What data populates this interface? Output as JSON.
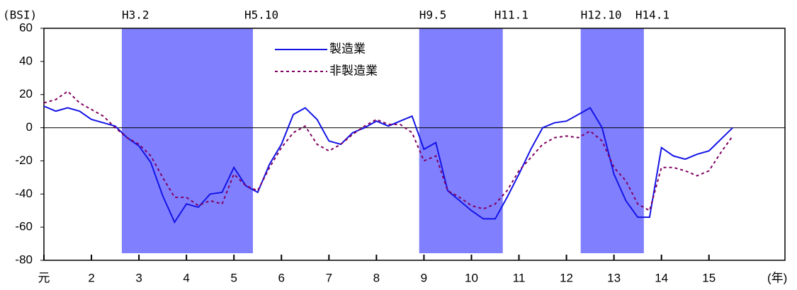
{
  "chart_data": {
    "type": "line",
    "y_label": "(BSI)",
    "x_label": "(年)",
    "x": [
      1,
      1.25,
      1.5,
      1.75,
      2,
      2.25,
      2.5,
      2.75,
      3,
      3.25,
      3.5,
      3.75,
      4,
      4.25,
      4.5,
      4.75,
      5,
      5.25,
      5.5,
      5.75,
      6,
      6.25,
      6.5,
      6.75,
      7,
      7.25,
      7.5,
      7.75,
      8,
      8.25,
      8.5,
      8.75,
      9,
      9.25,
      9.5,
      9.75,
      10,
      10.25,
      10.5,
      10.75,
      11,
      11.25,
      11.5,
      11.75,
      12,
      12.25,
      12.5,
      12.75,
      13,
      13.25,
      13.5,
      13.75,
      14,
      14.25,
      14.5,
      14.75,
      15,
      15.25,
      15.5
    ],
    "series": [
      {
        "name": "製造業",
        "color": "#1414e6",
        "dash": "solid",
        "values": [
          13,
          10,
          12,
          10,
          5,
          3,
          1,
          -6,
          -11,
          -21,
          -41,
          -57,
          -46,
          -48,
          -40,
          -39,
          -24,
          -35,
          -39,
          -22,
          -10,
          8,
          12,
          5,
          -8,
          -10,
          -3,
          0,
          4,
          1,
          4,
          7,
          -13,
          -9,
          -38,
          -44,
          -50,
          -55,
          -55,
          -42,
          -28,
          -13,
          0,
          3,
          4,
          8,
          12,
          0,
          -28,
          -44,
          -54,
          -54,
          -12,
          -17,
          -19,
          -16,
          -14,
          -7,
          0
        ]
      },
      {
        "name": "非製造業",
        "color": "#800060",
        "dash": "dotted",
        "values": [
          15,
          17,
          22,
          15,
          11,
          7,
          0,
          -6,
          -10,
          -17,
          -30,
          -42,
          -42,
          -47,
          -44,
          -46,
          -28,
          -35,
          -38,
          -24,
          -12,
          -3,
          1,
          -10,
          -14,
          -10,
          -4,
          1,
          5,
          2,
          2,
          -3,
          -20,
          -17,
          -38,
          -42,
          -47,
          -49,
          -46,
          -38,
          -26,
          -18,
          -10,
          -6,
          -5,
          -6,
          -2,
          -8,
          -24,
          -32,
          -46,
          -50,
          -24,
          -24,
          -26,
          -29,
          -26,
          -15,
          -5
        ]
      }
    ],
    "shaded_periods": [
      {
        "start": 2.64,
        "end": 5.4,
        "start_label": "H3.2",
        "end_label": "H5.10",
        "color": "#8080ff"
      },
      {
        "start": 8.9,
        "end": 10.66,
        "start_label": "H9.5",
        "end_label": "H11.1",
        "color": "#8080ff"
      },
      {
        "start": 12.3,
        "end": 13.63,
        "start_label": "H12.10",
        "end_label": "H14.1",
        "color": "#8080ff"
      }
    ],
    "xlim": [
      1,
      16.6
    ],
    "xticks": [
      {
        "value": 1,
        "label": "元"
      },
      2,
      3,
      4,
      5,
      6,
      7,
      8,
      9,
      10,
      11,
      12,
      13,
      14,
      15
    ],
    "ylim": [
      -80,
      60
    ],
    "yticks": [
      -80,
      -60,
      -40,
      -20,
      0,
      20,
      40,
      60
    ],
    "zero_line": true,
    "legend": "top"
  }
}
